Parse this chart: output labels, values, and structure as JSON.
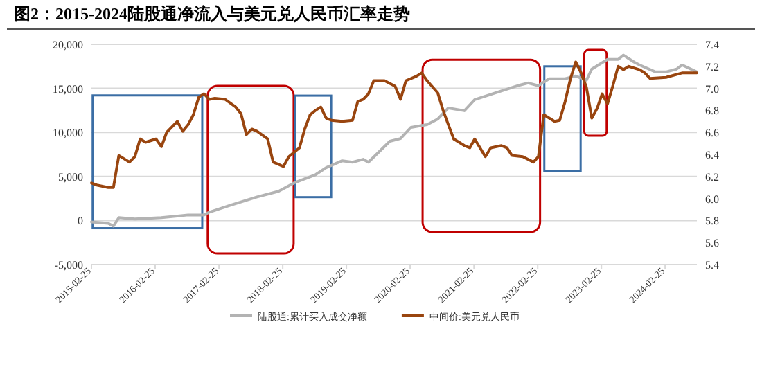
{
  "chart_data": {
    "type": "line",
    "title": "图2：2015-2024陆股通净流入与美元兑人民币汇率走势",
    "xlim": [
      "2015-02-25",
      "2024-08-25"
    ],
    "xticks": [
      "2015-02-25",
      "2016-02-25",
      "2017-02-25",
      "2018-02-25",
      "2019-02-25",
      "2020-02-25",
      "2021-02-25",
      "2022-02-25",
      "2023-02-25",
      "2024-02-25"
    ],
    "ylim": [
      -5000,
      20000
    ],
    "yticks": [
      {
        "value": -5000,
        "label": "-5,000"
      },
      0,
      {
        "value": 5000,
        "label": "5,000"
      },
      {
        "value": 10000,
        "label": "10,000"
      },
      {
        "value": 15000,
        "label": "15,000"
      },
      {
        "value": 20000,
        "label": "20,000"
      }
    ],
    "y2lim": [
      5.4,
      7.4
    ],
    "y2ticks": [
      5.4,
      5.6,
      5.8,
      {
        "value": 6,
        "label": "6.0"
      },
      6.2,
      6.4,
      6.6,
      6.8,
      {
        "value": 7,
        "label": "7.0"
      },
      7.2,
      7.4
    ],
    "grid": "y",
    "legend": "bottom",
    "series": [
      {
        "name": "陆股通:累计买入成交净额",
        "color": "#b3b3b3",
        "x": [
          "2015-02-25",
          "2015-06",
          "2015-07",
          "2015-08",
          "2015-11",
          "2016-04",
          "2016-09",
          "2016-12",
          "2017-01",
          "2017-05",
          "2017-10",
          "2018-02",
          "2018-05",
          "2018-09",
          "2018-11",
          "2019-02",
          "2019-04",
          "2019-06",
          "2019-07",
          "2019-11",
          "2020-01",
          "2020-03",
          "2020-06",
          "2020-08",
          "2020-10",
          "2021-01",
          "2021-03",
          "2021-07",
          "2021-11",
          "2022-01",
          "2022-03",
          "2022-05",
          "2022-08",
          "2022-10",
          "2022-12",
          "2023-01",
          "2023-04",
          "2023-06",
          "2023-07",
          "2023-09",
          "2023-10",
          "2024-01",
          "2024-03",
          "2024-05",
          "2024-06",
          "2024-08-25"
        ],
        "values": [
          -160,
          -320,
          -630,
          320,
          160,
          320,
          630,
          630,
          950,
          1730,
          2680,
          3310,
          4260,
          5200,
          5990,
          6780,
          6620,
          6940,
          6620,
          8990,
          9300,
          10570,
          10880,
          11510,
          12770,
          12460,
          13720,
          14510,
          15300,
          15610,
          15300,
          16090,
          16090,
          16400,
          15930,
          17190,
          18290,
          18290,
          18770,
          17980,
          17660,
          16870,
          16870,
          17190,
          17660,
          16870
        ]
      },
      {
        "name": "中间价:美元兑人民币",
        "color": "#99450f",
        "axis": "y2",
        "x": [
          "2015-02-25",
          "2015-04",
          "2015-06",
          "2015-07",
          "2015-08",
          "2015-10",
          "2015-11",
          "2015-12",
          "2016-01",
          "2016-03",
          "2016-04",
          "2016-05",
          "2016-07",
          "2016-08",
          "2016-09",
          "2016-10",
          "2016-11",
          "2016-12",
          "2017-01",
          "2017-02",
          "2017-04",
          "2017-06",
          "2017-07",
          "2017-08",
          "2017-09",
          "2017-10",
          "2017-12",
          "2018-01",
          "2018-02",
          "2018-03",
          "2018-04",
          "2018-06",
          "2018-07",
          "2018-08",
          "2018-09",
          "2018-10",
          "2018-11",
          "2018-12",
          "2019-02",
          "2019-04",
          "2019-05",
          "2019-06",
          "2019-07",
          "2019-08",
          "2019-10",
          "2019-12",
          "2020-01",
          "2020-02",
          "2020-04",
          "2020-05",
          "2020-06",
          "2020-08",
          "2020-09",
          "2020-10",
          "2020-11",
          "2021-01",
          "2021-02",
          "2021-03",
          "2021-05",
          "2021-06",
          "2021-08",
          "2021-09",
          "2021-10",
          "2021-12",
          "2022-02",
          "2022-03",
          "2022-04",
          "2022-06",
          "2022-07",
          "2022-08",
          "2022-09",
          "2022-10",
          "2022-11",
          "2022-12",
          "2023-01",
          "2023-02",
          "2023-03",
          "2023-04",
          "2023-05",
          "2023-06",
          "2023-07",
          "2023-08",
          "2023-10",
          "2023-11",
          "2023-12",
          "2024-03",
          "2024-06",
          "2024-08-25"
        ],
        "values": [
          6.14,
          6.12,
          6.1,
          6.1,
          6.39,
          6.33,
          6.38,
          6.54,
          6.51,
          6.54,
          6.47,
          6.6,
          6.7,
          6.61,
          6.67,
          6.76,
          6.92,
          6.95,
          6.9,
          6.91,
          6.9,
          6.83,
          6.77,
          6.58,
          6.63,
          6.61,
          6.54,
          6.33,
          6.31,
          6.29,
          6.38,
          6.46,
          6.63,
          6.76,
          6.8,
          6.83,
          6.73,
          6.71,
          6.7,
          6.71,
          6.88,
          6.9,
          6.95,
          7.07,
          7.07,
          7.02,
          6.9,
          7.07,
          7.11,
          7.14,
          7.07,
          6.96,
          6.8,
          6.67,
          6.54,
          6.48,
          6.46,
          6.54,
          6.38,
          6.46,
          6.48,
          6.46,
          6.39,
          6.38,
          6.33,
          6.38,
          6.76,
          6.7,
          6.71,
          6.88,
          7.09,
          7.24,
          7.14,
          7.01,
          6.73,
          6.82,
          6.95,
          6.86,
          7.02,
          7.2,
          7.17,
          7.2,
          7.17,
          7.14,
          7.09,
          7.1,
          7.14,
          7.14
        ]
      }
    ]
  }
}
